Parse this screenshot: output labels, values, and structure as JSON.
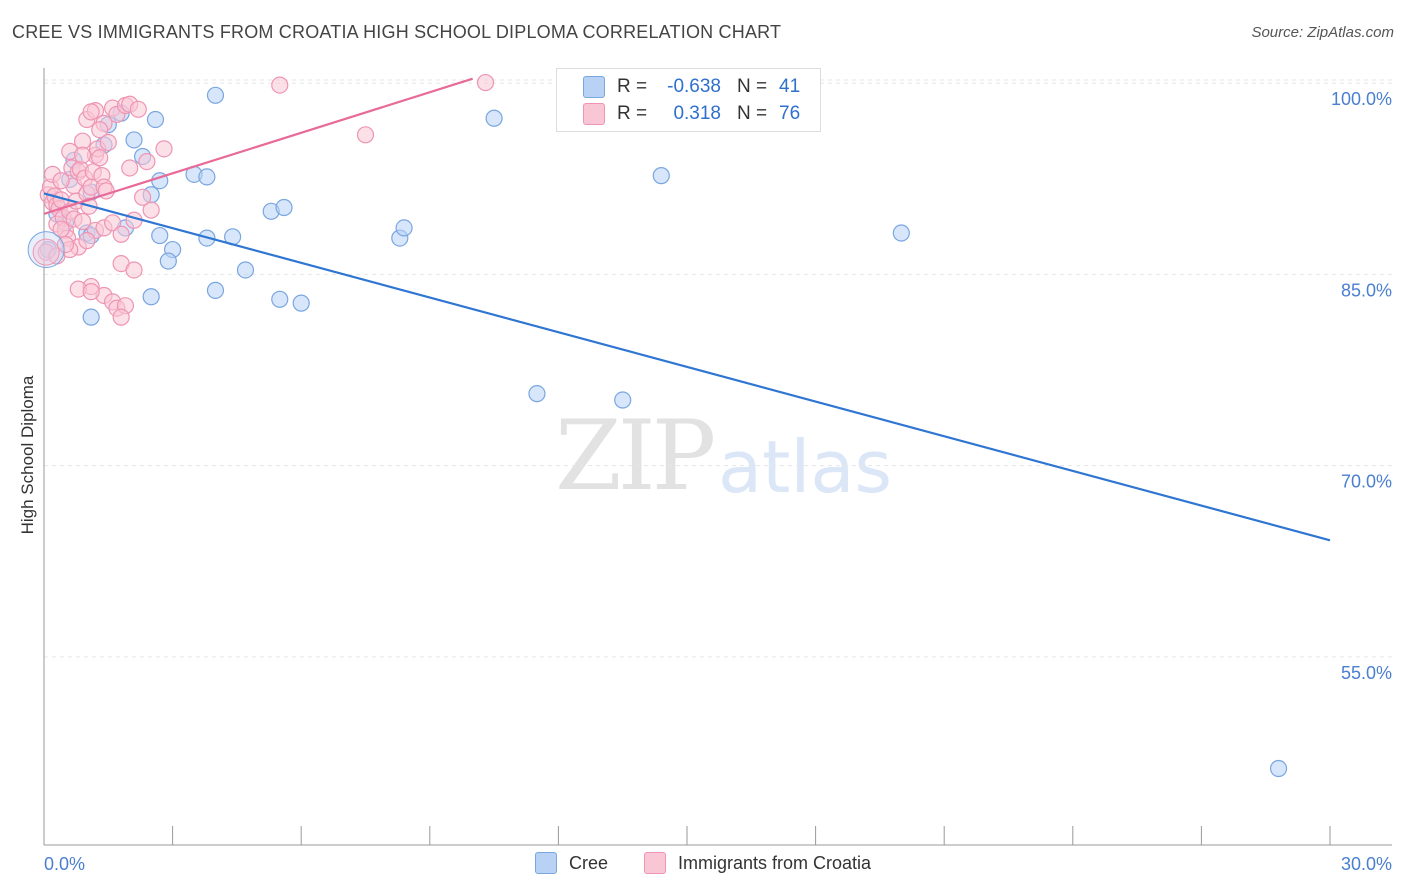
{
  "title": "CREE VS IMMIGRANTS FROM CROATIA HIGH SCHOOL DIPLOMA CORRELATION CHART",
  "source": "Source: ZipAtlas.com",
  "watermark": {
    "zip": "ZIP",
    "atlas": "atlas"
  },
  "colors": {
    "cree_fill": "#b7d2f5",
    "cree_stroke": "#7aa6e0",
    "cree_line": "#2f76d2",
    "croatia_fill": "#f9c6d6",
    "croatia_stroke": "#ee95b3",
    "croatia_line": "#e86a98",
    "axis_text": "#4a7fd0",
    "grid": "#e6e6e6"
  },
  "legend": {
    "cree": {
      "r_label": "R =",
      "r_value": "-0.638",
      "n_label": "N =",
      "n_value": "41"
    },
    "croatia": {
      "r_label": "R =",
      "r_value": "0.318",
      "n_label": "N =",
      "n_value": "76"
    }
  },
  "chart_data": {
    "type": "scatter",
    "title": "CREE VS IMMIGRANTS FROM CROATIA HIGH SCHOOL DIPLOMA CORRELATION CHART",
    "xlabel": "",
    "ylabel": "High School Diploma",
    "xlim": [
      0,
      30
    ],
    "ylim": [
      40,
      103
    ],
    "x_tick_labels": [
      "0.0%",
      "30.0%"
    ],
    "y_ticks": [
      55,
      70,
      85,
      100
    ],
    "y_tick_labels": [
      "55.0%",
      "70.0%",
      "85.0%",
      "100.0%"
    ],
    "grid": true,
    "legend_position": "bottom",
    "series": [
      {
        "name": "Cree",
        "points": [
          [
            0.1,
            88.2
          ],
          [
            0.6,
            93.7
          ],
          [
            0.7,
            95.2
          ],
          [
            0.3,
            91.0
          ],
          [
            0.5,
            90.3
          ],
          [
            1.0,
            89.5
          ],
          [
            1.1,
            92.7
          ],
          [
            1.4,
            96.4
          ],
          [
            1.5,
            98.0
          ],
          [
            1.8,
            98.9
          ],
          [
            2.1,
            96.8
          ],
          [
            2.6,
            98.4
          ],
          [
            2.7,
            93.6
          ],
          [
            2.5,
            92.5
          ],
          [
            1.1,
            89.3
          ],
          [
            1.9,
            89.9
          ],
          [
            2.7,
            89.3
          ],
          [
            3.0,
            88.2
          ],
          [
            2.9,
            87.3
          ],
          [
            3.8,
            89.1
          ],
          [
            4.4,
            89.2
          ],
          [
            3.5,
            94.1
          ],
          [
            3.8,
            93.9
          ],
          [
            4.0,
            100.3
          ],
          [
            5.3,
            91.2
          ],
          [
            5.6,
            91.5
          ],
          [
            4.0,
            85.0
          ],
          [
            4.7,
            86.6
          ],
          [
            6.0,
            84.0
          ],
          [
            5.5,
            84.3
          ],
          [
            2.5,
            84.5
          ],
          [
            1.1,
            82.9
          ],
          [
            2.3,
            95.5
          ],
          [
            8.3,
            89.1
          ],
          [
            8.4,
            89.9
          ],
          [
            10.5,
            98.5
          ],
          [
            11.5,
            76.9
          ],
          [
            13.5,
            76.4
          ],
          [
            14.4,
            94.0
          ],
          [
            20.0,
            89.5
          ],
          [
            28.8,
            47.5
          ]
        ]
      },
      {
        "name": "Immigrants from Croatia",
        "points": [
          [
            0.05,
            88.0
          ],
          [
            0.1,
            92.5
          ],
          [
            0.15,
            93.1
          ],
          [
            0.2,
            91.9
          ],
          [
            0.25,
            92.4
          ],
          [
            0.3,
            91.7
          ],
          [
            0.3,
            90.2
          ],
          [
            0.35,
            91.4
          ],
          [
            0.4,
            92.1
          ],
          [
            0.45,
            90.7
          ],
          [
            0.5,
            89.7
          ],
          [
            0.55,
            89.1
          ],
          [
            0.6,
            91.2
          ],
          [
            0.65,
            94.6
          ],
          [
            0.7,
            93.2
          ],
          [
            0.75,
            92.0
          ],
          [
            0.8,
            94.3
          ],
          [
            0.85,
            94.5
          ],
          [
            0.9,
            96.7
          ],
          [
            0.95,
            93.8
          ],
          [
            1.0,
            92.6
          ],
          [
            1.05,
            91.6
          ],
          [
            1.1,
            93.1
          ],
          [
            1.15,
            94.3
          ],
          [
            1.2,
            95.6
          ],
          [
            1.25,
            96.1
          ],
          [
            1.3,
            95.4
          ],
          [
            1.35,
            94.0
          ],
          [
            1.4,
            93.1
          ],
          [
            1.45,
            92.8
          ],
          [
            1.0,
            98.4
          ],
          [
            1.2,
            99.1
          ],
          [
            1.6,
            99.3
          ],
          [
            1.7,
            98.8
          ],
          [
            1.9,
            99.5
          ],
          [
            2.0,
            99.6
          ],
          [
            2.2,
            99.2
          ],
          [
            1.1,
            99.0
          ],
          [
            1.4,
            98.1
          ],
          [
            2.4,
            95.1
          ],
          [
            0.7,
            90.6
          ],
          [
            0.9,
            90.4
          ],
          [
            1.2,
            89.7
          ],
          [
            1.4,
            89.9
          ],
          [
            1.6,
            90.3
          ],
          [
            0.8,
            88.4
          ],
          [
            1.0,
            88.9
          ],
          [
            0.4,
            89.8
          ],
          [
            0.6,
            88.2
          ],
          [
            1.8,
            89.4
          ],
          [
            2.1,
            90.5
          ],
          [
            2.5,
            91.3
          ],
          [
            1.1,
            85.3
          ],
          [
            1.4,
            84.6
          ],
          [
            1.6,
            84.1
          ],
          [
            1.7,
            83.6
          ],
          [
            1.9,
            83.8
          ],
          [
            1.8,
            82.9
          ],
          [
            0.8,
            85.1
          ],
          [
            1.1,
            84.9
          ],
          [
            1.8,
            87.1
          ],
          [
            2.1,
            86.6
          ],
          [
            0.3,
            87.7
          ],
          [
            0.5,
            88.6
          ],
          [
            2.8,
            96.1
          ],
          [
            5.5,
            101.1
          ],
          [
            7.5,
            97.2
          ],
          [
            10.3,
            101.3
          ],
          [
            1.3,
            97.6
          ],
          [
            1.5,
            96.6
          ],
          [
            2.3,
            92.3
          ],
          [
            0.2,
            94.1
          ],
          [
            0.4,
            93.6
          ],
          [
            0.6,
            95.9
          ],
          [
            0.9,
            95.6
          ],
          [
            2.0,
            94.6
          ]
        ]
      }
    ],
    "trend_lines": [
      {
        "name": "Cree",
        "x": [
          0,
          30
        ],
        "y": [
          92.6,
          65.4
        ]
      },
      {
        "name": "Immigrants from Croatia",
        "x": [
          0,
          10.0
        ],
        "y": [
          91.0,
          101.6
        ]
      }
    ]
  },
  "bottom_legend": {
    "cree_label": "Cree",
    "croatia_label": "Immigrants from Croatia"
  }
}
